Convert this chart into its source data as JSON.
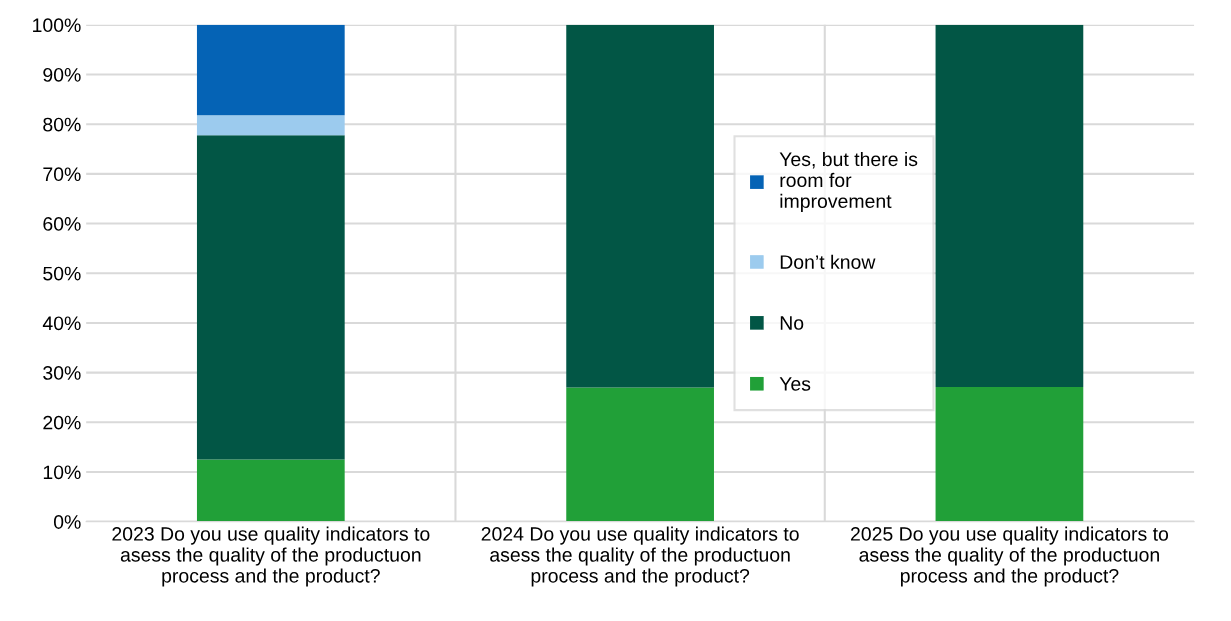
{
  "chart_data": {
    "type": "bar",
    "stacked": true,
    "categories": [
      "2023 Do you use quality indicators to asess the quality of the productuon process and the product?",
      "2024 Do you use quality indicators to asess the quality of the productuon process and the product?",
      "2025 Do you use quality indicators to asess the quality of the productuon process and the product?"
    ],
    "series": [
      {
        "name": "Yes",
        "color": "#21a038",
        "values": [
          12.5,
          27,
          27.1
        ]
      },
      {
        "name": "No",
        "color": "#025645",
        "values": [
          65.3,
          73,
          72.9
        ]
      },
      {
        "name": "Don’t know",
        "color": "#9ccbee",
        "values": [
          4,
          0,
          0
        ]
      },
      {
        "name": "Yes, but there is room for improvement",
        "color": "#0563b5",
        "values": [
          18.2,
          0,
          0
        ]
      }
    ],
    "ylim": [
      0,
      100
    ],
    "yticks": [
      {
        "value": 0,
        "label": "0%"
      },
      {
        "value": 10,
        "label": "10%"
      },
      {
        "value": 20,
        "label": "20%"
      },
      {
        "value": 30,
        "label": "30%"
      },
      {
        "value": 40,
        "label": "40%"
      },
      {
        "value": 50,
        "label": "50%"
      },
      {
        "value": 60,
        "label": "60%"
      },
      {
        "value": 70,
        "label": "70%"
      },
      {
        "value": 80,
        "label": "80%"
      },
      {
        "value": 90,
        "label": "90%"
      },
      {
        "value": 100,
        "label": "100%"
      }
    ],
    "grid": true,
    "legend": "right"
  }
}
